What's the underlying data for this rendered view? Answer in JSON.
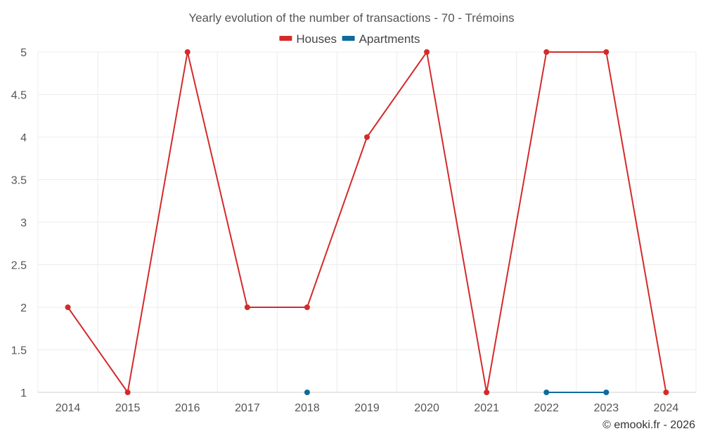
{
  "chart_data": {
    "type": "line",
    "title": "Yearly evolution of the number of transactions - 70 - Trémoins",
    "xlabel": "",
    "ylabel": "",
    "categories": [
      "2014",
      "2015",
      "2016",
      "2017",
      "2018",
      "2019",
      "2020",
      "2021",
      "2022",
      "2023",
      "2024"
    ],
    "ylim": [
      1,
      5
    ],
    "yticks": [
      "1",
      "1.5",
      "2",
      "2.5",
      "3",
      "3.5",
      "4",
      "4.5",
      "5"
    ],
    "grid": true,
    "legend_position": "top-center",
    "series": [
      {
        "name": "Houses",
        "color": "#d42a2a",
        "values": [
          2,
          1,
          5,
          2,
          2,
          4,
          5,
          1,
          5,
          5,
          1
        ]
      },
      {
        "name": "Apartments",
        "color": "#0e6b9c",
        "values": [
          null,
          null,
          null,
          null,
          1,
          null,
          null,
          null,
          1,
          1,
          null
        ]
      }
    ]
  },
  "credit": "© emooki.fr - 2026"
}
